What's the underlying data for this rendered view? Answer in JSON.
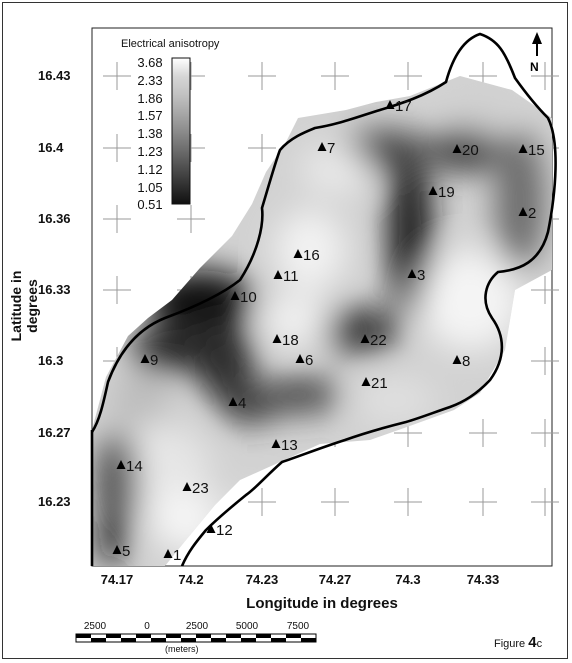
{
  "map": {
    "ylabel": "Latitude in degrees",
    "xlabel": "Longitude in degrees",
    "y_ticks": [
      "16.43",
      "16.4",
      "16.36",
      "16.33",
      "16.3",
      "16.27",
      "16.23"
    ],
    "x_ticks": [
      "74.17",
      "74.2",
      "74.23",
      "74.27",
      "74.3",
      "74.33"
    ],
    "legend": {
      "title": "Electrical anisotropy",
      "values": [
        "3.68",
        "2.33",
        "1.86",
        "1.57",
        "1.38",
        "1.23",
        "1.12",
        "1.05",
        "0.51"
      ],
      "ramp_colors": [
        "#ffffff",
        "#d6d6d6",
        "#c2c2c2",
        "#a8a8a8",
        "#8c8c8c",
        "#6e6e6e",
        "#4f4f4f",
        "#303030",
        "#101010"
      ]
    },
    "north_label": "N",
    "stations": [
      "1",
      "2",
      "3",
      "4",
      "5",
      "6",
      "7",
      "8",
      "9",
      "10",
      "11",
      "12",
      "13",
      "14",
      "15",
      "16",
      "17",
      "18",
      "19",
      "20",
      "21",
      "22",
      "23"
    ],
    "scale_bar": {
      "labels": [
        "2500",
        "0",
        "2500",
        "5000",
        "7500"
      ],
      "unit": "(meters)"
    },
    "figure_label": {
      "prefix": "Figure ",
      "number": "4",
      "suffix": "c"
    }
  }
}
